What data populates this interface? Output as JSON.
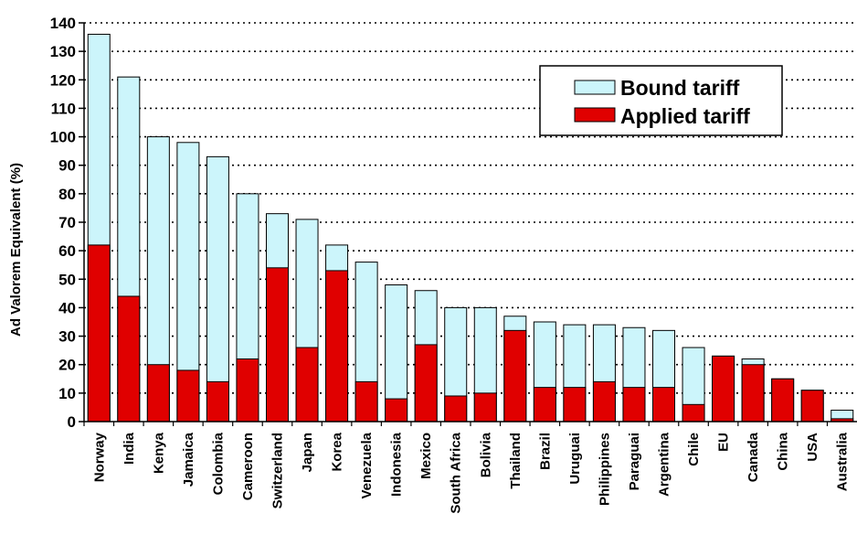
{
  "chart_data": {
    "type": "bar",
    "stacking": "overlay",
    "ylabel": "Ad Valorem Equivalent (%)",
    "xlabel": "",
    "ylim": [
      0,
      140
    ],
    "yticks": [
      0,
      10,
      20,
      30,
      40,
      50,
      60,
      70,
      80,
      90,
      100,
      110,
      120,
      130,
      140
    ],
    "grid": "horizontal-dotted",
    "legend_position": "top-right",
    "categories": [
      "Norway",
      "India",
      "Kenya",
      "Jamaica",
      "Colombia",
      "Cameroon",
      "Switzerland",
      "Japan",
      "Korea",
      "Venezuela",
      "Indonesia",
      "Mexico",
      "South Africa",
      "Bolivia",
      "Thailand",
      "Brazil",
      "Uruguai",
      "Philippines",
      "Paraguai",
      "Argentina",
      "Chile",
      "EU",
      "Canada",
      "China",
      "USA",
      "Australia"
    ],
    "series": [
      {
        "name": "Bound tariff",
        "color": "#ccf5fb",
        "values": [
          136,
          121,
          100,
          98,
          93,
          80,
          73,
          71,
          62,
          56,
          48,
          46,
          40,
          40,
          37,
          35,
          34,
          34,
          33,
          32,
          26,
          23,
          22,
          15,
          11,
          4
        ]
      },
      {
        "name": "Applied tariff",
        "color": "#e00000",
        "values": [
          62,
          44,
          20,
          18,
          14,
          22,
          54,
          26,
          53,
          14,
          8,
          27,
          9,
          10,
          32,
          12,
          12,
          14,
          12,
          12,
          6,
          23,
          20,
          15,
          11,
          1
        ]
      }
    ]
  }
}
